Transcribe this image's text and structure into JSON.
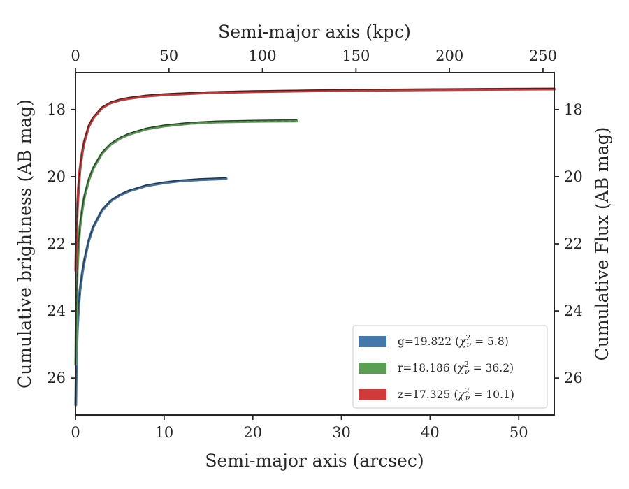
{
  "chart_data": {
    "type": "line",
    "x_bottom": {
      "label": "Semi-major axis (arcsec)",
      "lim": [
        0,
        54
      ],
      "ticks": [
        0,
        10,
        20,
        30,
        40,
        50
      ],
      "tick_labels": [
        "0",
        "10",
        "20",
        "30",
        "40",
        "50"
      ]
    },
    "x_top": {
      "label": "Semi-major axis (kpc)",
      "lim": [
        0,
        256
      ],
      "ticks": [
        0,
        50,
        100,
        150,
        200,
        250
      ],
      "tick_labels": [
        "0",
        "50",
        "100",
        "150",
        "200",
        "250"
      ]
    },
    "y_left": {
      "label": "Cumulative brightness (AB mag)",
      "lim": [
        27.1,
        16.9
      ],
      "inverted": true,
      "ticks": [
        18,
        20,
        22,
        24,
        26
      ],
      "tick_labels": [
        "18",
        "20",
        "22",
        "24",
        "26"
      ]
    },
    "y_right": {
      "label": "Cumulative Flux (AB mag)",
      "ticks": [
        18,
        20,
        22,
        24,
        26
      ],
      "tick_labels": [
        "18",
        "20",
        "22",
        "24",
        "26"
      ]
    },
    "grid": false,
    "legend_position": "lower-right",
    "series": [
      {
        "band": "g",
        "legend": {
          "prefix": "g=19.822 (",
          "chi": "χ",
          "sub": "ν",
          "sup": "2",
          "suffix": " = 5.8)"
        },
        "color": "#4477aa",
        "x": [
          0.03,
          0.1,
          0.2,
          0.35,
          0.5,
          0.75,
          1.0,
          1.5,
          2.0,
          3.0,
          4.0,
          5.0,
          6.0,
          8.0,
          10.0,
          12.0,
          14.0,
          17.0
        ],
        "y_data": [
          26.8,
          25.5,
          24.6,
          23.9,
          23.4,
          22.9,
          22.5,
          21.9,
          21.5,
          21.0,
          20.72,
          20.55,
          20.43,
          20.27,
          20.18,
          20.12,
          20.09,
          20.06
        ],
        "y_model": [
          26.7,
          25.4,
          24.5,
          23.85,
          23.35,
          22.85,
          22.45,
          21.88,
          21.48,
          20.98,
          20.7,
          20.53,
          20.41,
          20.25,
          20.16,
          20.1,
          20.06,
          20.03
        ]
      },
      {
        "band": "r",
        "legend": {
          "prefix": "r=18.186 (",
          "chi": "χ",
          "sub": "ν",
          "sup": "2",
          "suffix": " = 36.2)"
        },
        "color": "#5a9e54",
        "x": [
          0.03,
          0.1,
          0.2,
          0.35,
          0.5,
          0.75,
          1.0,
          1.5,
          2.0,
          3.0,
          4.0,
          5.0,
          6.0,
          8.0,
          10.0,
          13.0,
          16.0,
          20.0,
          25.0
        ],
        "y_data": [
          25.6,
          23.9,
          22.8,
          22.0,
          21.5,
          21.0,
          20.6,
          20.1,
          19.75,
          19.3,
          19.03,
          18.86,
          18.74,
          18.58,
          18.49,
          18.41,
          18.37,
          18.35,
          18.34
        ],
        "y_model": [
          25.5,
          23.8,
          22.75,
          21.95,
          21.45,
          20.95,
          20.55,
          20.05,
          19.72,
          19.27,
          19.0,
          18.83,
          18.71,
          18.55,
          18.46,
          18.38,
          18.34,
          18.32,
          18.3
        ]
      },
      {
        "band": "z",
        "legend": {
          "prefix": "z=17.325 (",
          "chi": "χ",
          "sub": "ν",
          "sup": "2",
          "suffix": " = 10.1)"
        },
        "color": "#d03a3a",
        "x": [
          0.03,
          0.1,
          0.2,
          0.35,
          0.5,
          0.75,
          1.0,
          1.5,
          2.0,
          3.0,
          4.0,
          5.0,
          6.0,
          8.0,
          10.0,
          15.0,
          20.0,
          30.0,
          40.0,
          54.0
        ],
        "y_data": [
          22.8,
          21.8,
          21.0,
          20.3,
          19.8,
          19.3,
          18.95,
          18.5,
          18.25,
          17.95,
          17.8,
          17.72,
          17.67,
          17.6,
          17.56,
          17.5,
          17.47,
          17.43,
          17.41,
          17.39
        ],
        "y_model": [
          22.7,
          21.7,
          20.95,
          20.25,
          19.75,
          19.25,
          18.9,
          18.46,
          18.22,
          17.92,
          17.77,
          17.69,
          17.64,
          17.57,
          17.53,
          17.47,
          17.44,
          17.41,
          17.39,
          17.37
        ]
      }
    ]
  }
}
